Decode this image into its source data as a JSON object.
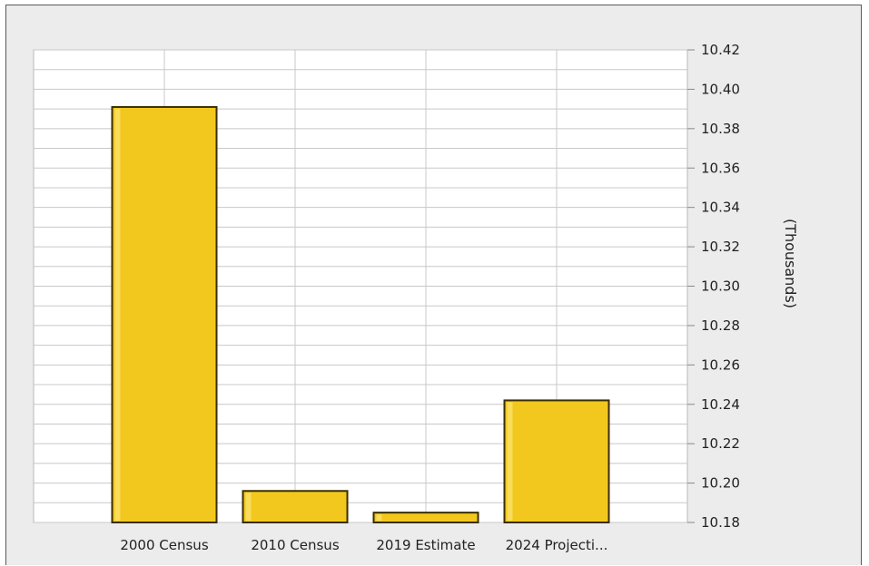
{
  "chart_data": {
    "type": "bar",
    "categories": [
      "2000 Census",
      "2010 Census",
      "2019 Estimate",
      "2024 Projecti..."
    ],
    "values": [
      10.391,
      10.196,
      10.185,
      10.242
    ],
    "title": "",
    "xlabel": "",
    "ylabel": "(Thousands)",
    "ylim": [
      10.18,
      10.42
    ],
    "yticks": [
      "10.18",
      "10.20",
      "10.22",
      "10.24",
      "10.26",
      "10.28",
      "10.30",
      "10.32",
      "10.34",
      "10.36",
      "10.38",
      "10.40",
      "10.42"
    ],
    "ytick_values": [
      10.18,
      10.2,
      10.22,
      10.24,
      10.26,
      10.28,
      10.3,
      10.32,
      10.34,
      10.36,
      10.38,
      10.4,
      10.42
    ],
    "y_axis_side": "right",
    "grid": true,
    "legend": "none",
    "bar_color": "#f2c81e",
    "bar_edge_color": "#3a2e00",
    "grid_color": "#c8c8c8",
    "plot_background": "#ffffff",
    "background": "#ececec"
  }
}
